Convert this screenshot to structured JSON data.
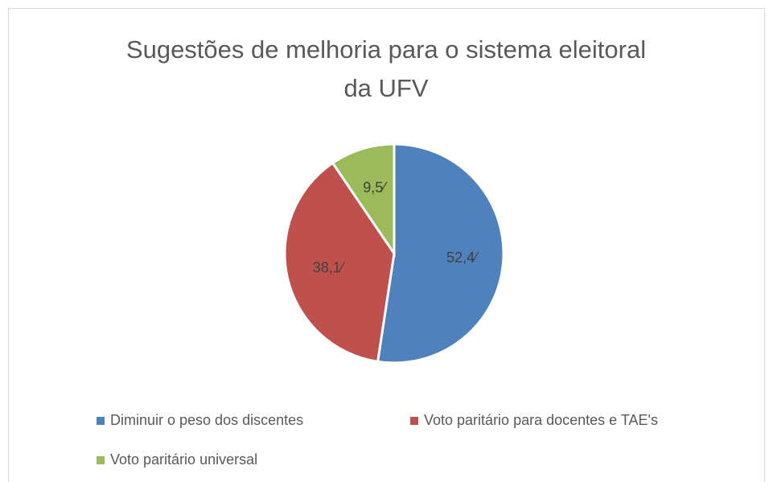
{
  "chart_data": {
    "type": "pie",
    "title": "Sugestões de melhoria para o sistema eleitoral da UFV",
    "categories": [
      "Diminuir o peso dos discentes",
      "Voto paritário para docentes e TAE's",
      "Voto paritário universal"
    ],
    "values": [
      52.4,
      38.1,
      9.5
    ],
    "value_labels": [
      "52,4⁄",
      "38,1⁄",
      "9,5⁄"
    ],
    "colors": [
      "#4f81bd",
      "#c0504d",
      "#9bbb59"
    ],
    "legend": "bottom"
  }
}
